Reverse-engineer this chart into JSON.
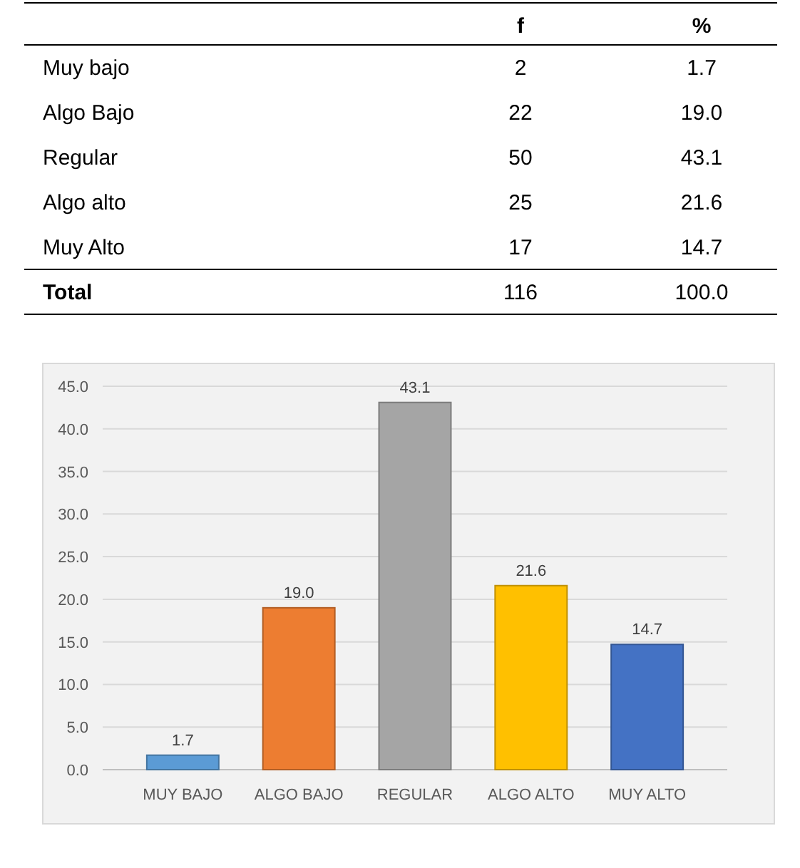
{
  "chart_data": [
    {
      "type": "other",
      "categories": [
        "Muy bajo",
        "Algo Bajo",
        "Regular",
        "Algo alto",
        "Muy Alto",
        "Total"
      ],
      "series": [
        {
          "name": "f",
          "values": [
            2,
            22,
            50,
            25,
            17,
            116
          ],
          "value_labels": [
            "2",
            "22",
            "50",
            "25",
            "17",
            "116"
          ]
        },
        {
          "name": "%",
          "values": [
            1.7,
            19.0,
            43.1,
            21.6,
            14.7,
            100.0
          ],
          "value_labels": [
            "1.7",
            "19.0",
            "43.1",
            "21.6",
            "14.7",
            "100.0"
          ]
        }
      ]
    },
    {
      "type": "bar",
      "categories": [
        "MUY BAJO",
        "ALGO BAJO",
        "REGULAR",
        "ALGO ALTO",
        "MUY ALTO"
      ],
      "values": [
        1.7,
        19.0,
        43.1,
        21.6,
        14.7
      ],
      "value_labels": [
        "1.7",
        "19.0",
        "43.1",
        "21.6",
        "14.7"
      ],
      "colors": [
        "#5b9bd5",
        "#ed7d31",
        "#a5a5a5",
        "#ffc000",
        "#4472c4"
      ],
      "ylim": [
        0,
        45
      ],
      "yticks": [
        {
          "value": 0,
          "label": "0.0"
        },
        {
          "value": 5,
          "label": "5.0"
        },
        {
          "value": 10,
          "label": "10.0"
        },
        {
          "value": 15,
          "label": "15.0"
        },
        {
          "value": 20,
          "label": "20.0"
        },
        {
          "value": 25,
          "label": "25.0"
        },
        {
          "value": 30,
          "label": "30.0"
        },
        {
          "value": 35,
          "label": "35.0"
        },
        {
          "value": 40,
          "label": "40.0"
        },
        {
          "value": 45,
          "label": "45.0"
        }
      ],
      "grid": "y"
    }
  ]
}
